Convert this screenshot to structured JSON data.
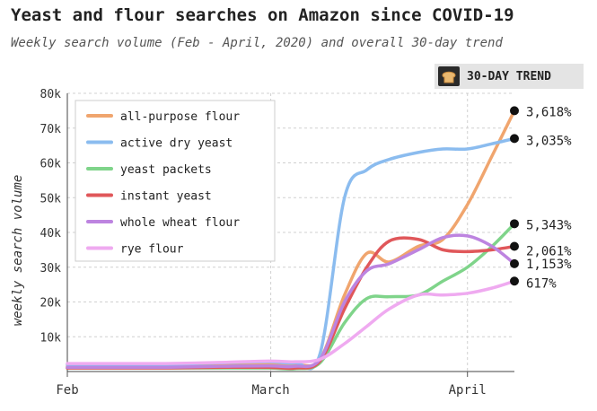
{
  "header": {
    "title": "Yeast and flour searches on Amazon since COVID-19",
    "subtitle": "Weekly search volume (Feb - April, 2020) and overall 30-day trend",
    "badge_label": "30-DAY TREND",
    "badge_icon": "bread-icon"
  },
  "chart_data": {
    "type": "line",
    "title": "Yeast and flour searches on Amazon since COVID-19",
    "subtitle": "Weekly search volume (Feb - April, 2020) and overall 30-day trend",
    "ylabel": "weekly search volume",
    "xlabel": "",
    "ylim": [
      0,
      80000
    ],
    "yticks": [
      10000,
      20000,
      30000,
      40000,
      50000,
      60000,
      70000,
      80000
    ],
    "ytick_labels": [
      "10k",
      "20k",
      "30k",
      "40k",
      "50k",
      "60k",
      "70k",
      "80k"
    ],
    "xlim": [
      0,
      1
    ],
    "xticks": [
      0,
      0.455,
      0.895
    ],
    "xtick_labels": [
      "Feb",
      "March",
      "April"
    ],
    "grid": true,
    "legend_position": "top-left",
    "x": [
      0,
      0.11,
      0.22,
      0.34,
      0.45,
      0.51,
      0.565,
      0.62,
      0.67,
      0.72,
      0.785,
      0.84,
      0.895,
      0.95,
      1.0
    ],
    "series": [
      {
        "name": "all-purpose flour",
        "color": "#f0a56e",
        "values": [
          1500,
          1500,
          1500,
          1800,
          2000,
          2000,
          3500,
          22000,
          34000,
          31500,
          36000,
          38000,
          48000,
          62000,
          75000
        ],
        "trend_label": "3,618%"
      },
      {
        "name": "active dry yeast",
        "color": "#8bbcef",
        "values": [
          2000,
          2000,
          2000,
          2500,
          2800,
          2500,
          5000,
          50000,
          58000,
          61000,
          63000,
          64000,
          64000,
          65500,
          67000
        ],
        "trend_label": "3,035%"
      },
      {
        "name": "yeast packets",
        "color": "#7fd48a",
        "values": [
          1000,
          1000,
          1000,
          1000,
          1000,
          800,
          2500,
          14000,
          21000,
          21500,
          22000,
          26000,
          30000,
          36000,
          42500
        ],
        "trend_label": "5,343%"
      },
      {
        "name": "instant yeast",
        "color": "#e0575a",
        "values": [
          1000,
          1000,
          1000,
          1200,
          1200,
          1000,
          3000,
          18000,
          30000,
          37500,
          38000,
          35000,
          34500,
          35000,
          36000
        ],
        "trend_label": "2,061%"
      },
      {
        "name": "whole wheat flour",
        "color": "#bd84e0",
        "values": [
          1200,
          1200,
          1200,
          1500,
          1600,
          1500,
          3500,
          20000,
          29000,
          31000,
          35000,
          38500,
          39000,
          36000,
          31000
        ],
        "trend_label": "1,153%"
      },
      {
        "name": "rye flour",
        "color": "#efaaf0",
        "values": [
          2300,
          2300,
          2300,
          2600,
          3000,
          2800,
          3500,
          8000,
          13000,
          18000,
          22000,
          22000,
          22500,
          24000,
          26000
        ],
        "trend_label": "617%"
      }
    ]
  }
}
